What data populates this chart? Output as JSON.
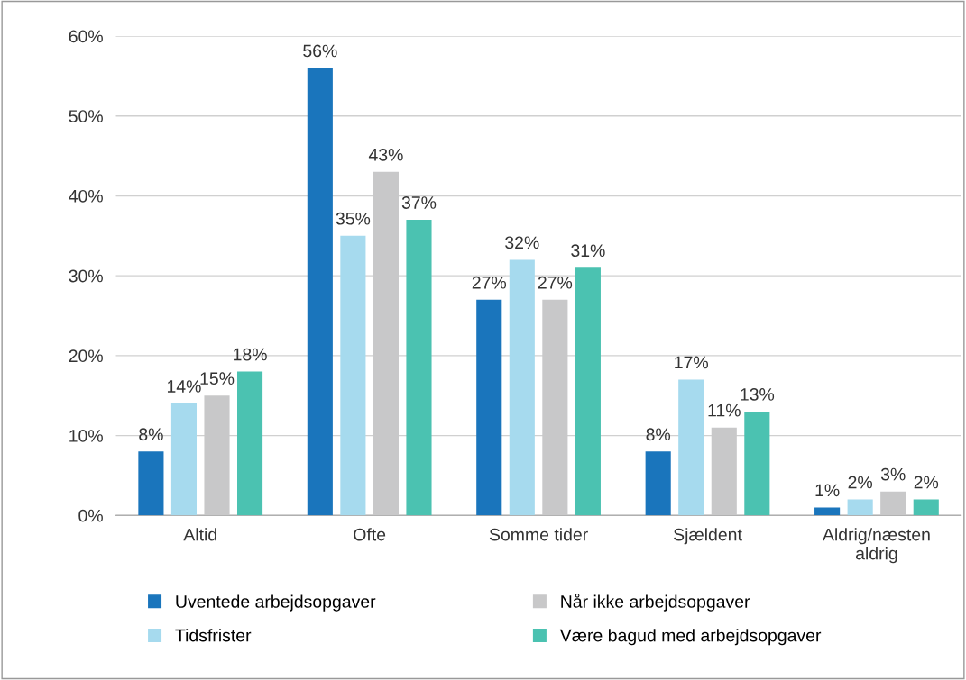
{
  "chart_data": {
    "type": "bar",
    "categories": [
      "Altid",
      "Ofte",
      "Somme tider",
      "Sjældent",
      "Aldrig/næsten\naldrig"
    ],
    "series": [
      {
        "name": "Uventede arbejdsopgaver",
        "color": "#1a75bc",
        "values": [
          8,
          56,
          27,
          8,
          1
        ],
        "value_labels": [
          "8%",
          "56%",
          "27%",
          "8%",
          "1%"
        ]
      },
      {
        "name": "Tidsfrister",
        "color": "#a6daee",
        "values": [
          14,
          35,
          32,
          17,
          2
        ],
        "value_labels": [
          "14%",
          "35%",
          "32%",
          "17%",
          "2%"
        ]
      },
      {
        "name": "Når ikke arbejdsopgaver",
        "color": "#c8c8c9",
        "values": [
          15,
          43,
          27,
          11,
          3
        ],
        "value_labels": [
          "15%",
          "43%",
          "27%",
          "11%",
          "3%"
        ]
      },
      {
        "name": "Være bagud med arbejdsopgaver",
        "color": "#4bc2b1",
        "values": [
          18,
          37,
          31,
          13,
          2
        ],
        "value_labels": [
          "18%",
          "37%",
          "31%",
          "13%",
          "2%"
        ]
      }
    ],
    "ylim": [
      0,
      60
    ],
    "yticks": [
      {
        "value": 0,
        "label": "0%"
      },
      {
        "value": 10,
        "label": "10%"
      },
      {
        "value": 20,
        "label": "20%"
      },
      {
        "value": 30,
        "label": "30%"
      },
      {
        "value": 40,
        "label": "40%"
      },
      {
        "value": 50,
        "label": "50%"
      },
      {
        "value": 60,
        "label": "60%"
      }
    ],
    "grid": "y",
    "legend": "bottom"
  }
}
